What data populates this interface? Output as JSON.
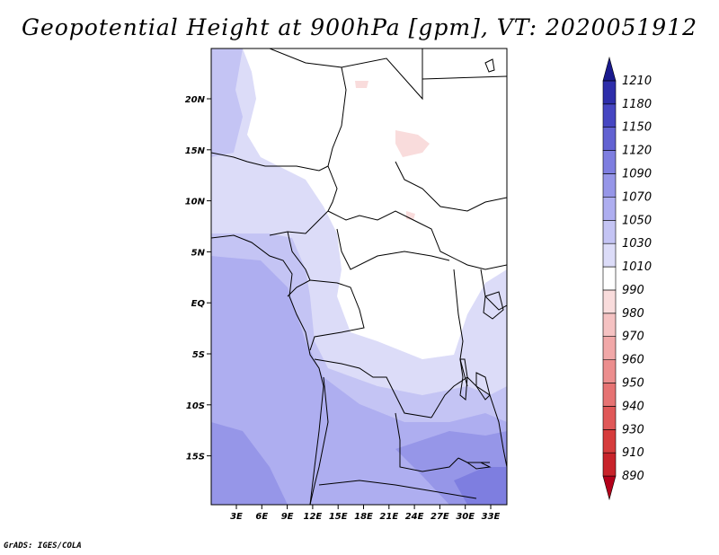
{
  "title": "Geopotential Height at 900hPa [gpm], VT: 2020051912",
  "footer": "GrADS: IGES/COLA",
  "map": {
    "lon_labels": [
      "3E",
      "6E",
      "9E",
      "12E",
      "15E",
      "18E",
      "21E",
      "24E",
      "27E",
      "30E",
      "33E"
    ],
    "lat_labels": [
      "20N",
      "15N",
      "10N",
      "5N",
      "EQ",
      "5S",
      "10S",
      "15S"
    ]
  },
  "colorbar": {
    "levels": [
      "890",
      "910",
      "930",
      "940",
      "950",
      "960",
      "970",
      "980",
      "990",
      "1010",
      "1030",
      "1050",
      "1070",
      "1090",
      "1120",
      "1150",
      "1180",
      "1210"
    ],
    "colors": [
      "#b3001a",
      "#c8232a",
      "#d63c3c",
      "#e05858",
      "#e67373",
      "#ec8e8e",
      "#f1a8a8",
      "#f5c2c2",
      "#f9dcdc",
      "#ffffff",
      "#dcdcf8",
      "#c4c4f4",
      "#aeaef0",
      "#9696e8",
      "#7e7ee0",
      "#6262d2",
      "#4646c2",
      "#2e2eaa",
      "#1a1a8e"
    ]
  }
}
